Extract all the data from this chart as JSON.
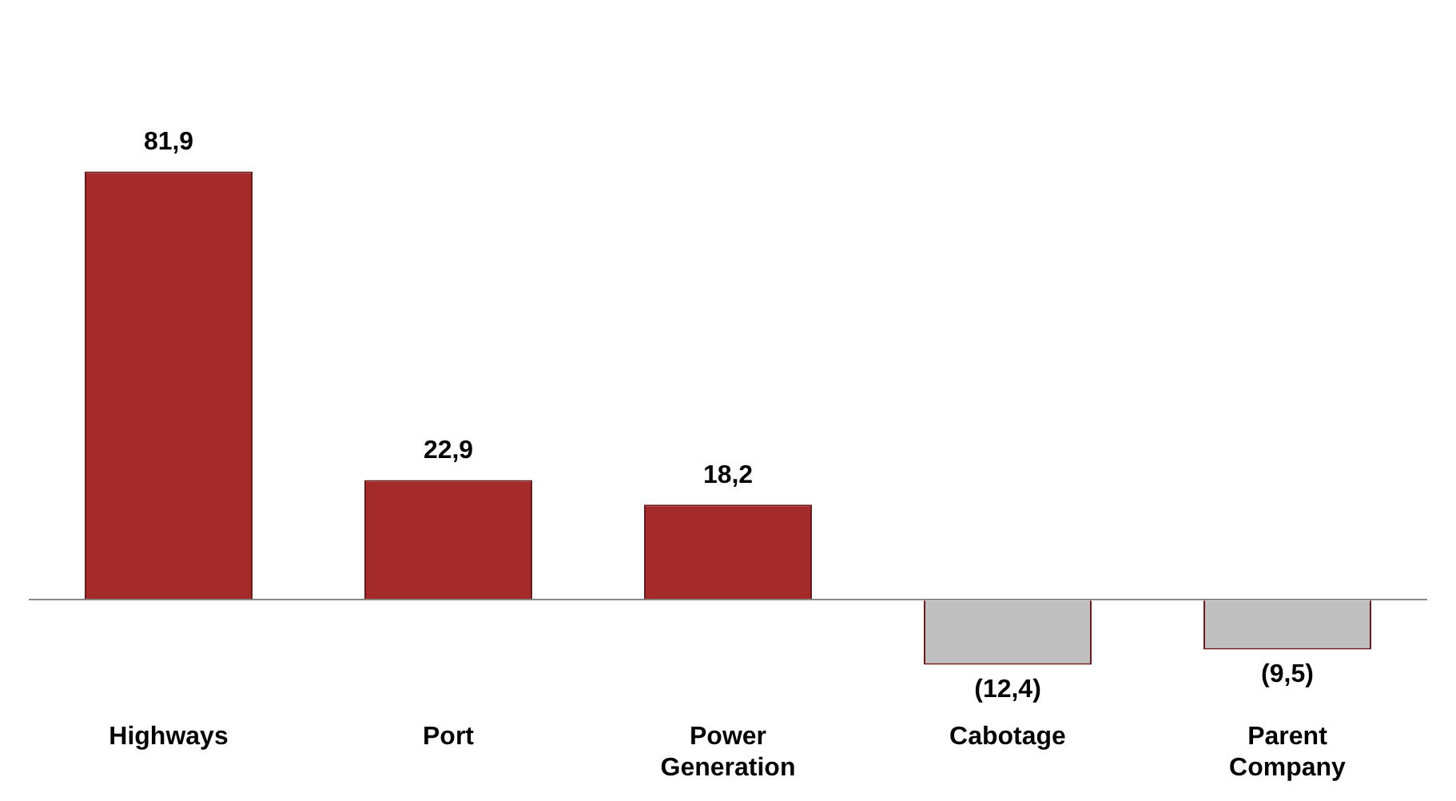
{
  "chart_data": {
    "type": "bar",
    "relative": false,
    "categories": [
      "Highways",
      "Port",
      "Power Generation",
      "Cabotage",
      "Parent Company"
    ],
    "values": [
      81.9,
      22.9,
      18.2,
      -12.4,
      -9.5
    ],
    "colors": [
      "#a52a2a",
      "#a52a2a",
      "#a52a2a",
      "#bfbfbf",
      "#bfbfbf"
    ],
    "value_labels": [
      "81,9",
      "22,9",
      "18,2",
      "(12,4)",
      "(9,5)"
    ],
    "grid": false,
    "legend": false
  }
}
